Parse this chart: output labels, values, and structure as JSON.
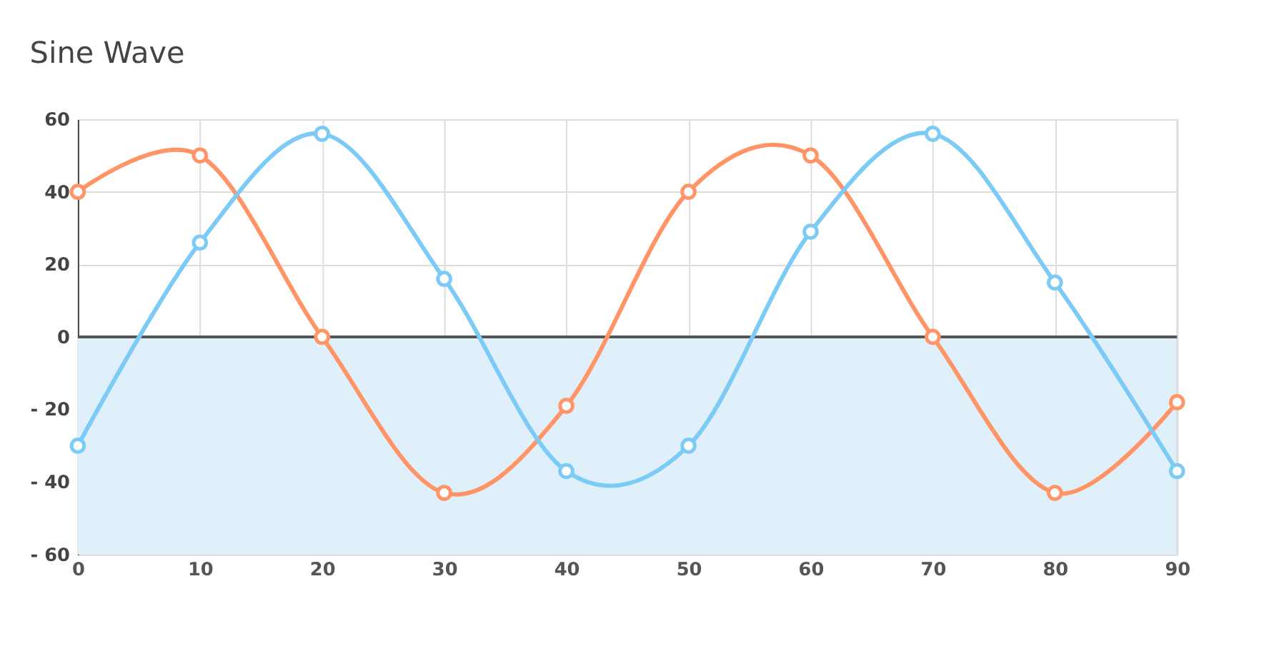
{
  "chart_data": {
    "type": "line",
    "title": "Sine Wave",
    "x": [
      0,
      10,
      20,
      30,
      40,
      50,
      60,
      70,
      80,
      90
    ],
    "series": [
      {
        "color": "#ff9566",
        "values": [
          40,
          50,
          0,
          -43,
          -19,
          40,
          50,
          0,
          -43,
          -18
        ]
      },
      {
        "color": "#7ccbf7",
        "values": [
          -30,
          26,
          56,
          16,
          -37,
          -30,
          29,
          56,
          15,
          -37
        ]
      }
    ],
    "xlim": [
      0,
      90
    ],
    "xticks": [
      0,
      10,
      20,
      30,
      40,
      50,
      60,
      70,
      80,
      90
    ],
    "ylim": [
      -60,
      60
    ],
    "yticks": [
      {
        "value": -60,
        "label": "- 60"
      },
      {
        "value": -40,
        "label": "- 40"
      },
      {
        "value": -20,
        "label": "- 20"
      },
      0,
      20,
      40,
      60
    ],
    "bands": [
      {
        "axis": "y",
        "from": -60,
        "to": 0,
        "color": "#dff0fb"
      }
    ],
    "ref_lines": [
      {
        "axis": "y",
        "value": 0,
        "color": "#555555"
      }
    ],
    "grid": true,
    "marker": "circle",
    "line_style": "solid"
  }
}
